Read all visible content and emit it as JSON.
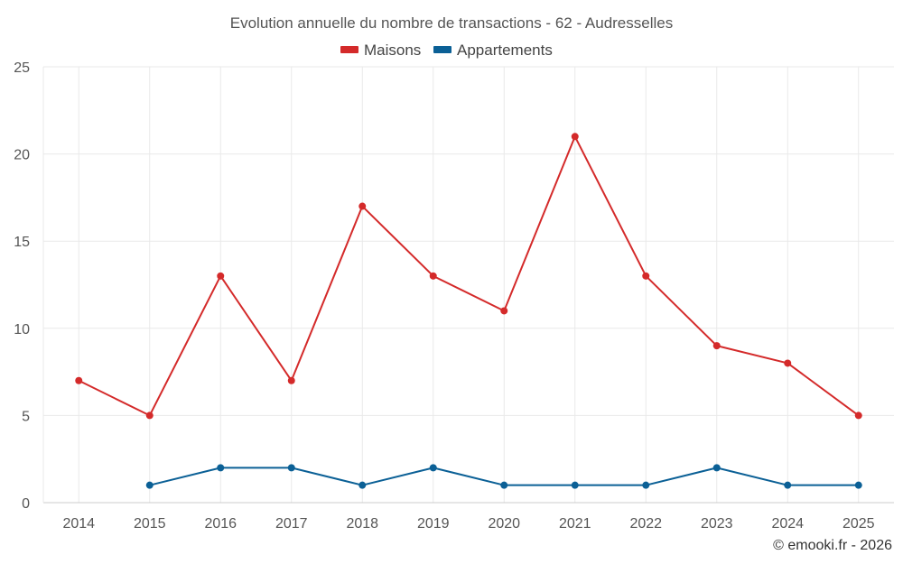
{
  "chart_data": {
    "type": "line",
    "title": "Evolution annuelle du nombre de transactions - 62 - Audresselles",
    "xlabel": "",
    "ylabel": "",
    "categories": [
      "2014",
      "2015",
      "2016",
      "2017",
      "2018",
      "2019",
      "2020",
      "2021",
      "2022",
      "2023",
      "2024",
      "2025"
    ],
    "ylim": [
      0,
      25
    ],
    "yticks": [
      "0",
      "5",
      "10",
      "15",
      "20",
      "25"
    ],
    "grid": true,
    "legend_position": "top-center",
    "series": [
      {
        "name": "Maisons",
        "color": "#d42a2a",
        "values": [
          7,
          5,
          13,
          7,
          17,
          13,
          11,
          21,
          13,
          9,
          8,
          5
        ]
      },
      {
        "name": "Appartements",
        "color": "#0b6096",
        "values": [
          null,
          1,
          2,
          2,
          1,
          2,
          1,
          1,
          1,
          2,
          1,
          1
        ]
      }
    ]
  },
  "credit": "© emooki.fr - 2026"
}
